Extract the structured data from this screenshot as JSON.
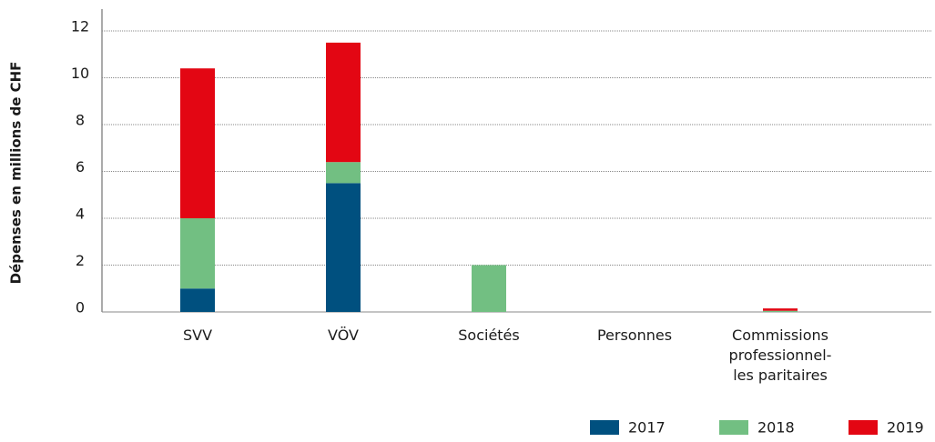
{
  "chart_data": {
    "type": "bar",
    "stacked": true,
    "y_label": "Dépenses en millions de CHF",
    "categories": [
      "SVV",
      "VÖV",
      "Sociétés",
      "Personnes",
      "Commissions\nprofessionnel-\nles paritaires"
    ],
    "series": [
      {
        "name": "2017",
        "color": "#00507f",
        "values": [
          1.0,
          5.5,
          0,
          0,
          0
        ]
      },
      {
        "name": "2018",
        "color": "#72bf82",
        "values": [
          3.0,
          0.9,
          2.0,
          0,
          0.05
        ]
      },
      {
        "name": "2019",
        "color": "#e30613",
        "values": [
          6.4,
          5.1,
          0,
          0,
          0.1
        ]
      }
    ],
    "ylim": [
      0,
      12
    ],
    "yticks": [
      0,
      2,
      4,
      6,
      8,
      10,
      12
    ],
    "grid": true,
    "legend": "bottom-right"
  }
}
